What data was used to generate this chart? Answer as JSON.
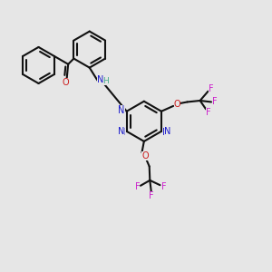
{
  "background_color": "#e6e6e6",
  "bond_color": "#111111",
  "N_color": "#1a1acc",
  "O_color": "#cc1a1a",
  "F_color": "#cc22cc",
  "H_color": "#44aa88",
  "bond_lw": 1.5,
  "font_size": 7.0,
  "xlim": [
    0,
    10
  ],
  "ylim": [
    0,
    10
  ]
}
